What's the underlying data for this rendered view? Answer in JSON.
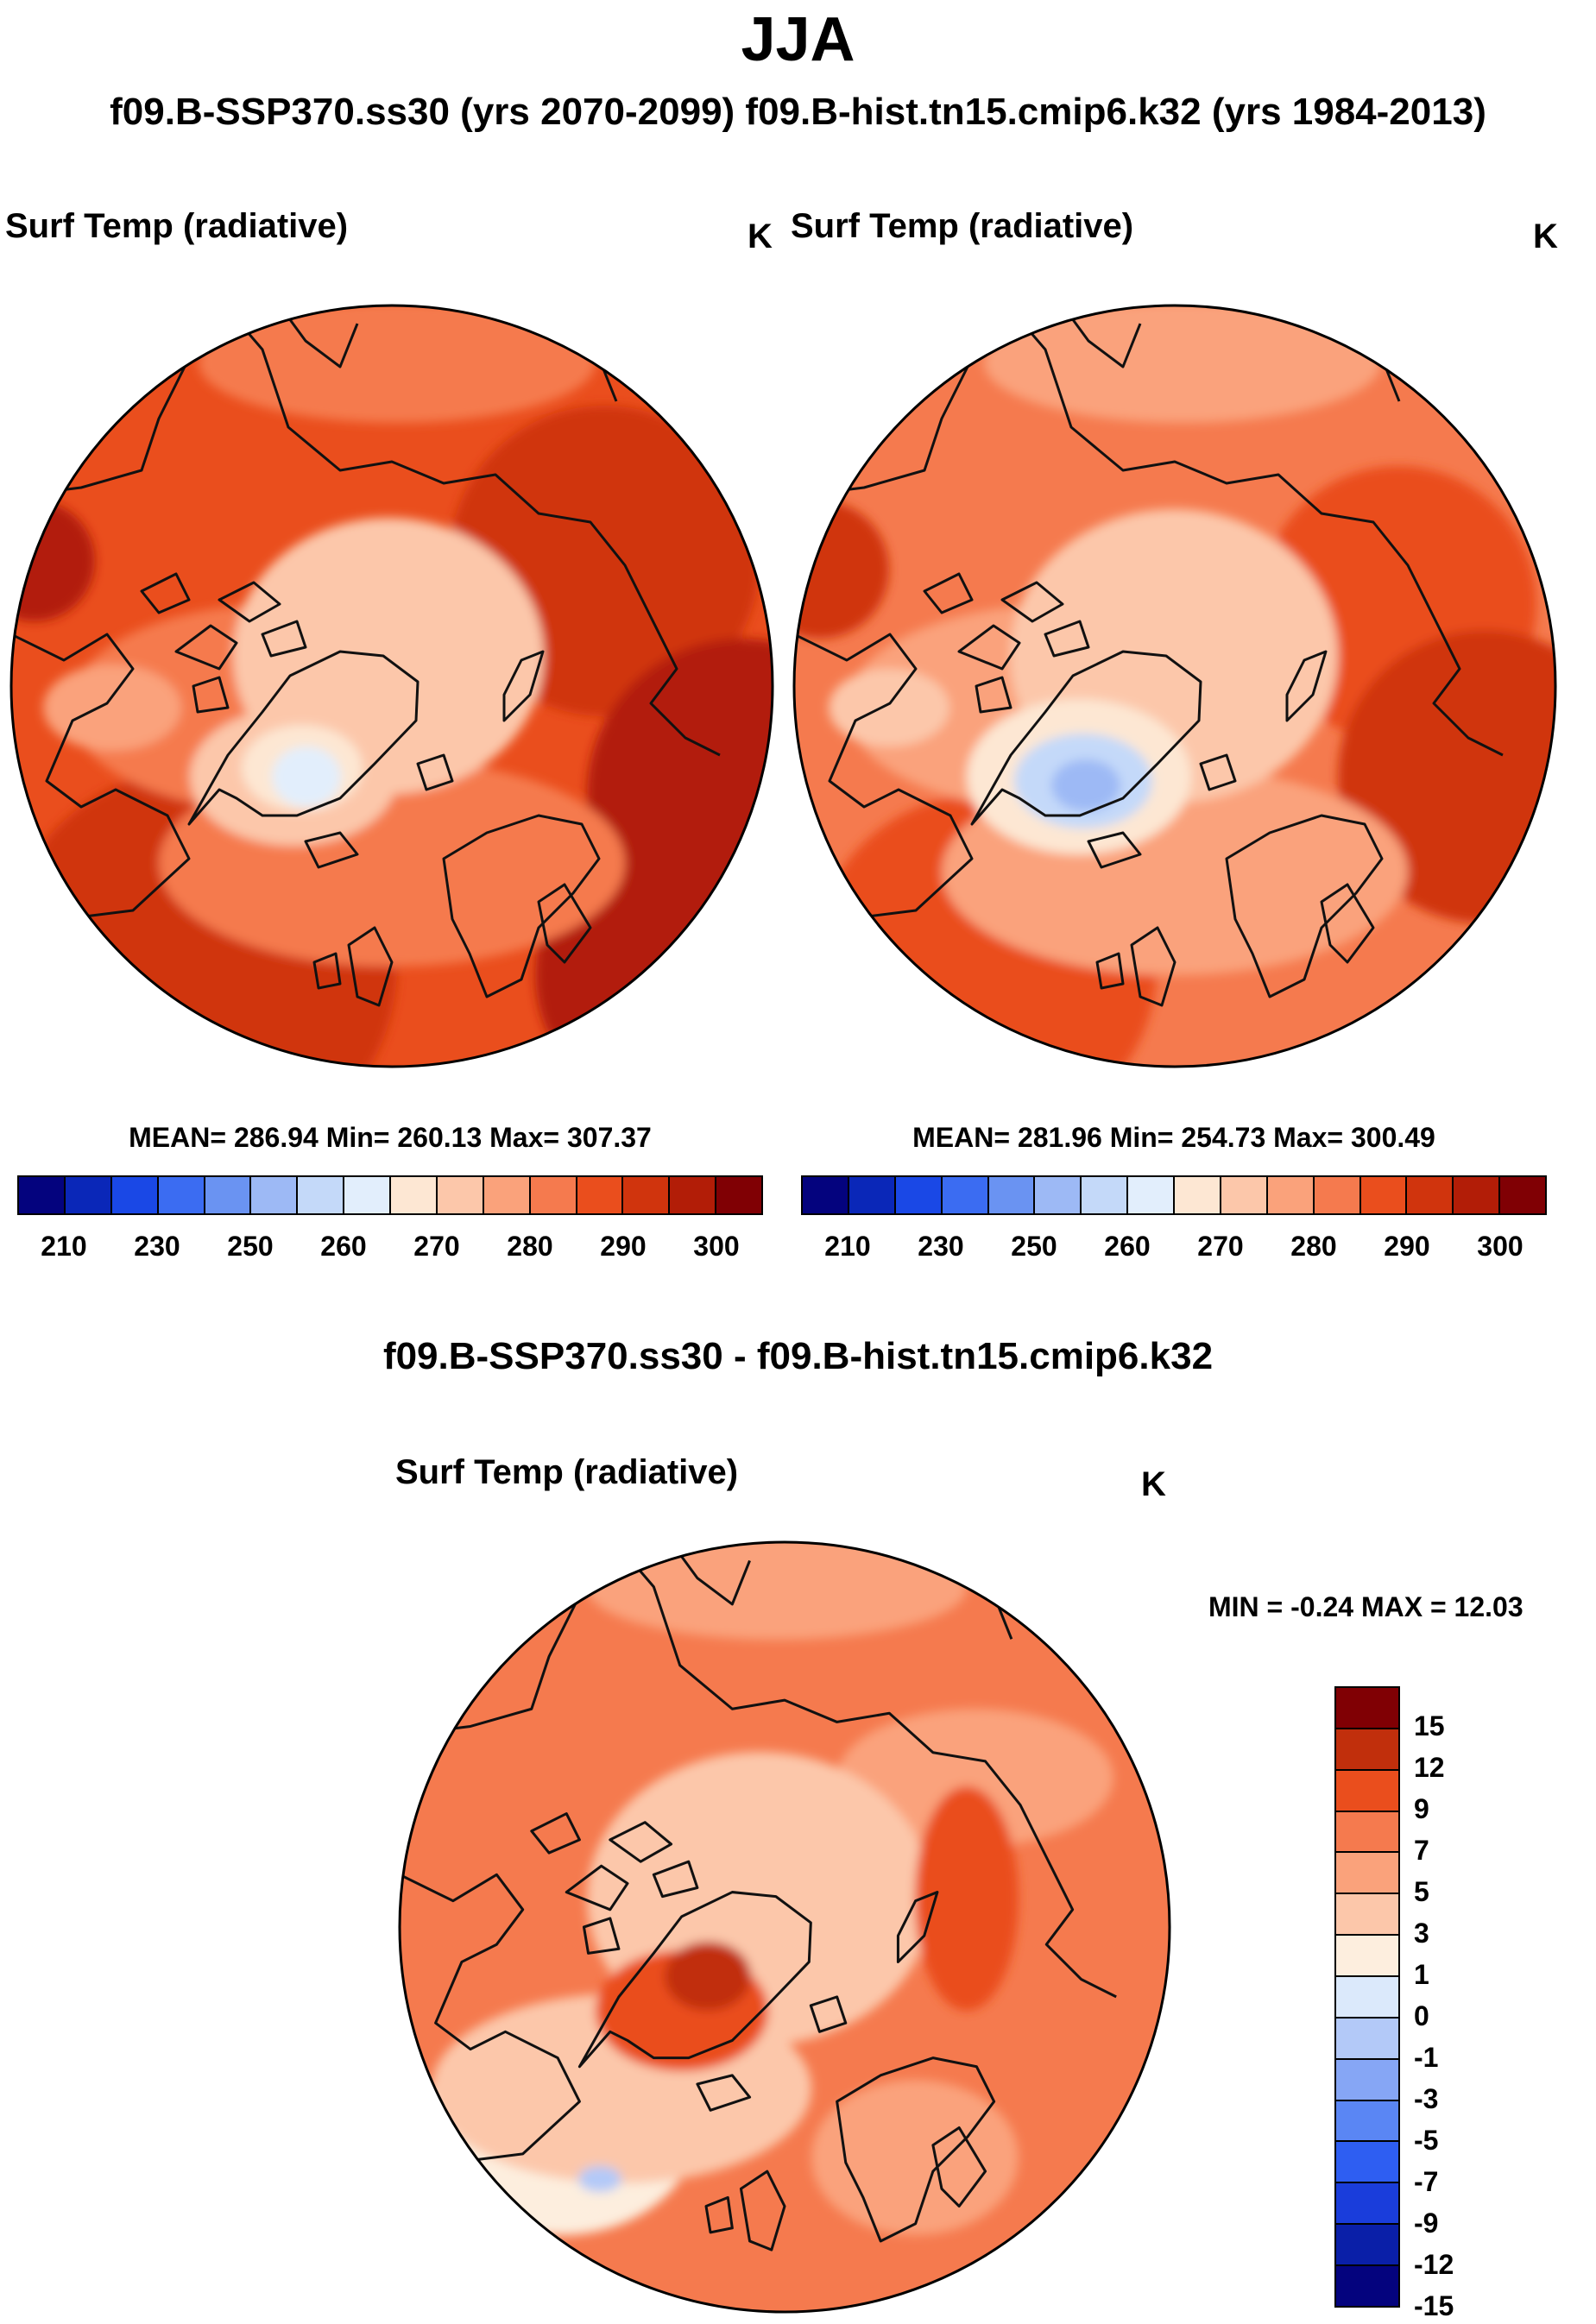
{
  "header": {
    "season": "JJA",
    "case_titles": "f09.B-SSP370.ss30 (yrs 2070-2099)  f09.B-hist.tn15.cmip6.k32 (yrs 1984-2013)"
  },
  "colors": {
    "temp_palette": [
      "#04037e",
      "#0a27b8",
      "#1a48e6",
      "#3b6cf2",
      "#6a93f2",
      "#9db9f5",
      "#c4d9f9",
      "#e2eefc",
      "#fde7d3",
      "#fcc7aa",
      "#faa27b",
      "#f57a4e",
      "#ea4e1d",
      "#d0340d",
      "#b21d07",
      "#800004"
    ],
    "diff_palette": [
      "#04037e",
      "#0a1fa8",
      "#1a3ddb",
      "#2e5ef2",
      "#5a86f4",
      "#86a6f5",
      "#b3c9f8",
      "#dbe9fb",
      "#fdeede",
      "#fcc7aa",
      "#faa27b",
      "#f57a4e",
      "#ea4e1d",
      "#c12f0c",
      "#800004"
    ],
    "coastline": "#111111"
  },
  "chart_data": [
    {
      "type": "heatmap",
      "projection": "north polar stereographic",
      "title": "f09.B-SSP370.ss30 (yrs 2070-2099)",
      "variable": "Surf Temp (radiative)",
      "units": "K",
      "stats": {
        "mean": 286.94,
        "min": 260.13,
        "max": 307.37
      },
      "stats_text": "MEAN= 286.94  Min= 260.13  Max= 307.37",
      "colorbar_levels": [
        205,
        210,
        220,
        230,
        240,
        250,
        255,
        260,
        265,
        270,
        275,
        280,
        285,
        290,
        295,
        300,
        305
      ],
      "colorbar_tick_labels": [
        "210",
        "230",
        "250",
        "260",
        "270",
        "280",
        "290",
        "300"
      ]
    },
    {
      "type": "heatmap",
      "projection": "north polar stereographic",
      "title": "f09.B-hist.tn15.cmip6.k32 (yrs 1984-2013)",
      "variable": "Surf Temp (radiative)",
      "units": "K",
      "stats": {
        "mean": 281.96,
        "min": 254.73,
        "max": 300.49
      },
      "stats_text": "MEAN= 281.96  Min= 254.73  Max= 300.49",
      "colorbar_levels": [
        205,
        210,
        220,
        230,
        240,
        250,
        255,
        260,
        265,
        270,
        275,
        280,
        285,
        290,
        295,
        300,
        305
      ],
      "colorbar_tick_labels": [
        "210",
        "230",
        "250",
        "260",
        "270",
        "280",
        "290",
        "300"
      ]
    },
    {
      "type": "heatmap",
      "projection": "north polar stereographic",
      "title": "f09.B-SSP370.ss30 - f09.B-hist.tn15.cmip6.k32",
      "variable": "Surf Temp (radiative)",
      "units": "K",
      "stats": {
        "min": -0.24,
        "max": 12.03
      },
      "stats_text": "MIN =  -0.24 MAX =  12.03",
      "colorbar_levels": [
        15,
        12,
        9,
        7,
        5,
        3,
        1,
        0,
        -1,
        -3,
        -5,
        -7,
        -9,
        -12,
        -15
      ],
      "colorbar_tick_labels": [
        "15",
        "12",
        "9",
        "7",
        "5",
        "3",
        "1",
        "0",
        "-1",
        "-3",
        "-5",
        "-7",
        "-9",
        "-12",
        "-15"
      ]
    }
  ]
}
